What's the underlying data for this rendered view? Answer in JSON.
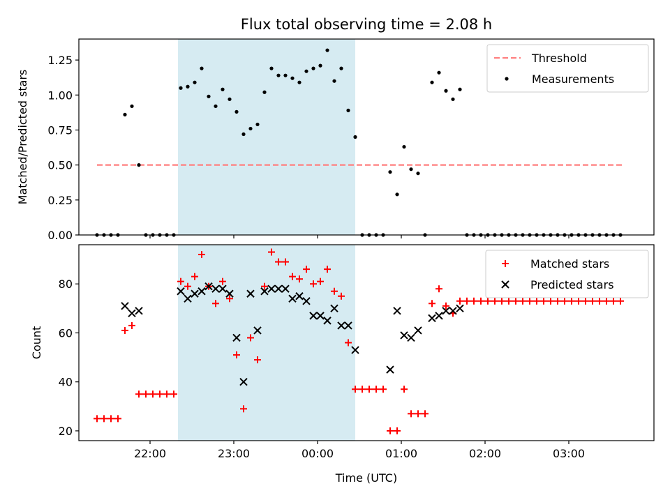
{
  "chart_data": [
    {
      "type": "scatter",
      "title": "Flux total observing time = 2.08 h",
      "xlabel": "",
      "ylabel": "Matched/Predicted stars",
      "ylim": [
        0,
        1.4
      ],
      "yticks": [
        "0.00",
        "0.25",
        "0.50",
        "0.75",
        "1.00",
        "1.25"
      ],
      "x_ticks": [
        "22:00",
        "23:00",
        "00:00",
        "01:00",
        "02:00",
        "03:00"
      ],
      "shaded_region": {
        "start": "22:20",
        "end": "00:27",
        "color": "#add8e6"
      },
      "legend_position": "top-right",
      "threshold": {
        "name": "Threshold",
        "value": 0.5,
        "x_start": "21:22",
        "x_end": "03:38",
        "color": "#ff7f7f"
      },
      "series": [
        {
          "name": "Measurements",
          "color": "#000000",
          "marker": "dot",
          "points": [
            [
              "21:22",
              0
            ],
            [
              "21:27",
              0
            ],
            [
              "21:32",
              0
            ],
            [
              "21:37",
              0
            ],
            [
              "21:42",
              0.86
            ],
            [
              "21:47",
              0.92
            ],
            [
              "21:52",
              0.5
            ],
            [
              "21:57",
              0
            ],
            [
              "22:02",
              0
            ],
            [
              "22:07",
              0
            ],
            [
              "22:12",
              0
            ],
            [
              "22:17",
              0
            ],
            [
              "22:22",
              1.05
            ],
            [
              "22:27",
              1.06
            ],
            [
              "22:32",
              1.09
            ],
            [
              "22:37",
              1.19
            ],
            [
              "22:42",
              0.99
            ],
            [
              "22:47",
              0.92
            ],
            [
              "22:52",
              1.04
            ],
            [
              "22:57",
              0.97
            ],
            [
              "23:02",
              0.88
            ],
            [
              "23:07",
              0.72
            ],
            [
              "23:12",
              0.76
            ],
            [
              "23:17",
              0.79
            ],
            [
              "23:22",
              1.02
            ],
            [
              "23:27",
              1.19
            ],
            [
              "23:32",
              1.14
            ],
            [
              "23:37",
              1.14
            ],
            [
              "23:42",
              1.12
            ],
            [
              "23:47",
              1.09
            ],
            [
              "23:52",
              1.17
            ],
            [
              "23:57",
              1.19
            ],
            [
              "00:02",
              1.21
            ],
            [
              "00:07",
              1.32
            ],
            [
              "00:12",
              1.1
            ],
            [
              "00:17",
              1.19
            ],
            [
              "00:22",
              0.89
            ],
            [
              "00:27",
              0.7
            ],
            [
              "00:32",
              0
            ],
            [
              "00:37",
              0
            ],
            [
              "00:42",
              0
            ],
            [
              "00:47",
              0
            ],
            [
              "00:52",
              0.45
            ],
            [
              "00:57",
              0.29
            ],
            [
              "01:02",
              0.63
            ],
            [
              "01:07",
              0.47
            ],
            [
              "01:12",
              0.44
            ],
            [
              "01:17",
              0
            ],
            [
              "01:22",
              1.09
            ],
            [
              "01:27",
              1.16
            ],
            [
              "01:32",
              1.03
            ],
            [
              "01:37",
              0.97
            ],
            [
              "01:42",
              1.04
            ],
            [
              "01:47",
              0
            ],
            [
              "01:52",
              0
            ],
            [
              "01:57",
              0
            ],
            [
              "02:02",
              0
            ],
            [
              "02:07",
              0
            ],
            [
              "02:12",
              0
            ],
            [
              "02:17",
              0
            ],
            [
              "02:22",
              0
            ],
            [
              "02:27",
              0
            ],
            [
              "02:32",
              0
            ],
            [
              "02:37",
              0
            ],
            [
              "02:42",
              0
            ],
            [
              "02:47",
              0
            ],
            [
              "02:52",
              0
            ],
            [
              "02:57",
              0
            ],
            [
              "03:02",
              0
            ],
            [
              "03:07",
              0
            ],
            [
              "03:12",
              0
            ],
            [
              "03:17",
              0
            ],
            [
              "03:22",
              0
            ],
            [
              "03:27",
              0
            ],
            [
              "03:32",
              0
            ],
            [
              "03:37",
              0
            ]
          ]
        }
      ]
    },
    {
      "type": "scatter",
      "title": "",
      "xlabel": "Time (UTC)",
      "ylabel": "Count",
      "ylim": [
        16,
        96
      ],
      "yticks": [
        "20",
        "40",
        "60",
        "80"
      ],
      "x_ticks": [
        "22:00",
        "23:00",
        "00:00",
        "01:00",
        "02:00",
        "03:00"
      ],
      "shaded_region": {
        "start": "22:20",
        "end": "00:27",
        "color": "#add8e6"
      },
      "legend_position": "top-right",
      "series": [
        {
          "name": "Matched stars",
          "color": "#ff0000",
          "marker": "plus",
          "points": [
            [
              "21:22",
              25
            ],
            [
              "21:27",
              25
            ],
            [
              "21:32",
              25
            ],
            [
              "21:37",
              25
            ],
            [
              "21:42",
              61
            ],
            [
              "21:47",
              63
            ],
            [
              "21:52",
              35
            ],
            [
              "21:57",
              35
            ],
            [
              "22:02",
              35
            ],
            [
              "22:07",
              35
            ],
            [
              "22:12",
              35
            ],
            [
              "22:17",
              35
            ],
            [
              "22:22",
              81
            ],
            [
              "22:27",
              79
            ],
            [
              "22:32",
              83
            ],
            [
              "22:37",
              92
            ],
            [
              "22:42",
              79
            ],
            [
              "22:47",
              72
            ],
            [
              "22:52",
              81
            ],
            [
              "22:57",
              74
            ],
            [
              "23:02",
              51
            ],
            [
              "23:07",
              29
            ],
            [
              "23:12",
              58
            ],
            [
              "23:17",
              49
            ],
            [
              "23:22",
              79
            ],
            [
              "23:27",
              93
            ],
            [
              "23:32",
              89
            ],
            [
              "23:37",
              89
            ],
            [
              "23:42",
              83
            ],
            [
              "23:47",
              82
            ],
            [
              "23:52",
              86
            ],
            [
              "23:57",
              80
            ],
            [
              "00:02",
              81
            ],
            [
              "00:07",
              86
            ],
            [
              "00:12",
              77
            ],
            [
              "00:17",
              75
            ],
            [
              "00:22",
              56
            ],
            [
              "00:27",
              37
            ],
            [
              "00:32",
              37
            ],
            [
              "00:37",
              37
            ],
            [
              "00:42",
              37
            ],
            [
              "00:47",
              37
            ],
            [
              "00:52",
              20
            ],
            [
              "00:57",
              20
            ],
            [
              "01:02",
              37
            ],
            [
              "01:07",
              27
            ],
            [
              "01:12",
              27
            ],
            [
              "01:17",
              27
            ],
            [
              "01:22",
              72
            ],
            [
              "01:27",
              78
            ],
            [
              "01:32",
              71
            ],
            [
              "01:37",
              68
            ],
            [
              "01:42",
              73
            ],
            [
              "01:47",
              73
            ],
            [
              "01:52",
              73
            ],
            [
              "01:57",
              73
            ],
            [
              "02:02",
              73
            ],
            [
              "02:07",
              73
            ],
            [
              "02:12",
              73
            ],
            [
              "02:17",
              73
            ],
            [
              "02:22",
              73
            ],
            [
              "02:27",
              73
            ],
            [
              "02:32",
              73
            ],
            [
              "02:37",
              73
            ],
            [
              "02:42",
              73
            ],
            [
              "02:47",
              73
            ],
            [
              "02:52",
              73
            ],
            [
              "02:57",
              73
            ],
            [
              "03:02",
              73
            ],
            [
              "03:07",
              73
            ],
            [
              "03:12",
              73
            ],
            [
              "03:17",
              73
            ],
            [
              "03:22",
              73
            ],
            [
              "03:27",
              73
            ],
            [
              "03:32",
              73
            ],
            [
              "03:37",
              73
            ]
          ]
        },
        {
          "name": "Predicted stars",
          "color": "#000000",
          "marker": "x",
          "points": [
            [
              "21:42",
              71
            ],
            [
              "21:47",
              68
            ],
            [
              "21:52",
              69
            ],
            [
              "22:22",
              77
            ],
            [
              "22:27",
              74
            ],
            [
              "22:32",
              76
            ],
            [
              "22:37",
              77
            ],
            [
              "22:42",
              79
            ],
            [
              "22:47",
              78
            ],
            [
              "22:52",
              78
            ],
            [
              "22:57",
              76
            ],
            [
              "23:02",
              58
            ],
            [
              "23:07",
              40
            ],
            [
              "23:12",
              76
            ],
            [
              "23:17",
              61
            ],
            [
              "23:22",
              77
            ],
            [
              "23:27",
              78
            ],
            [
              "23:32",
              78
            ],
            [
              "23:37",
              78
            ],
            [
              "23:42",
              74
            ],
            [
              "23:47",
              75
            ],
            [
              "23:52",
              73
            ],
            [
              "23:57",
              67
            ],
            [
              "00:02",
              67
            ],
            [
              "00:07",
              65
            ],
            [
              "00:12",
              70
            ],
            [
              "00:17",
              63
            ],
            [
              "00:22",
              63
            ],
            [
              "00:27",
              53
            ],
            [
              "00:52",
              45
            ],
            [
              "00:57",
              69
            ],
            [
              "01:02",
              59
            ],
            [
              "01:07",
              58
            ],
            [
              "01:12",
              61
            ],
            [
              "01:22",
              66
            ],
            [
              "01:27",
              67
            ],
            [
              "01:32",
              69
            ],
            [
              "01:37",
              69
            ],
            [
              "01:42",
              70
            ]
          ]
        }
      ]
    }
  ]
}
